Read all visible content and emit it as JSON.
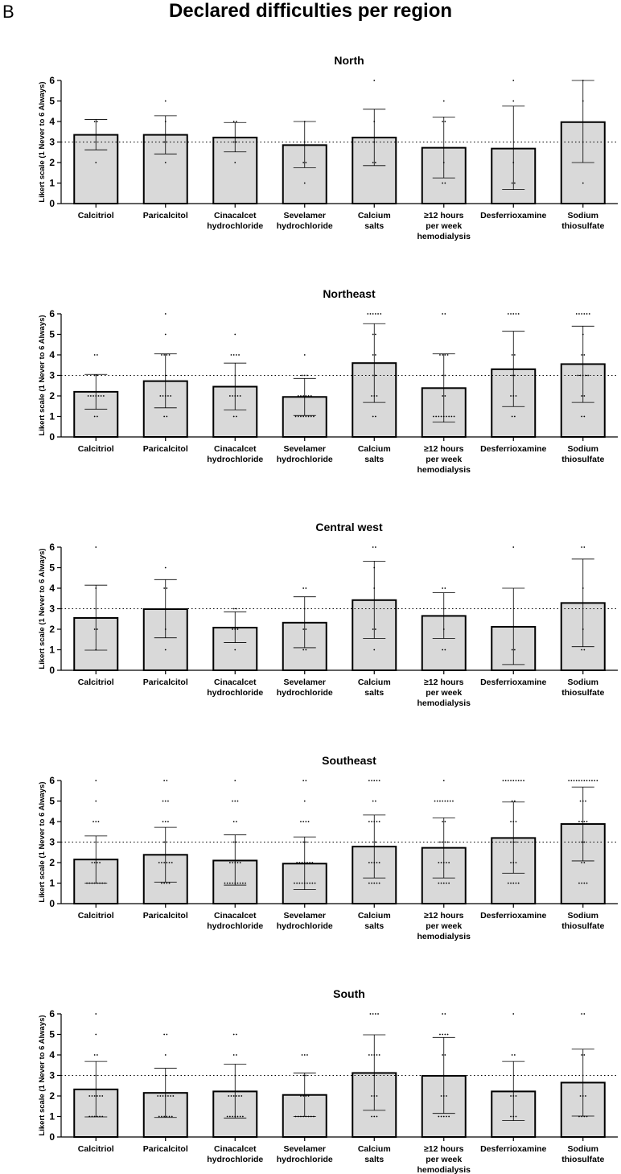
{
  "figure": {
    "panel_letter": "B",
    "title": "Declared difficulties per region"
  },
  "chart_data": [
    {
      "type": "bar",
      "title": "North",
      "ylabel": "Likert scale (1 Never to 6 Always)",
      "ylim": [
        0,
        6
      ],
      "yticks": [
        0,
        1,
        2,
        3,
        4,
        5,
        6
      ],
      "reference_line": 3,
      "categories": [
        [
          "Calcitriol"
        ],
        [
          "Paricalcitol"
        ],
        [
          "Cinacalcet",
          "hydrochloride"
        ],
        [
          "Sevelamer",
          "hydrochloride"
        ],
        [
          "Calcium",
          "salts"
        ],
        [
          "≥12 hours",
          "per week",
          "hemodialysis"
        ],
        [
          "Desferrioxamine"
        ],
        [
          "Sodium",
          "thiosulfate"
        ]
      ],
      "values": [
        3.35,
        3.35,
        3.22,
        2.85,
        3.22,
        2.72,
        2.68,
        3.97
      ],
      "error_low": [
        2.62,
        2.42,
        2.52,
        1.75,
        1.85,
        1.25,
        0.68,
        2.0
      ],
      "error_high": [
        4.1,
        4.28,
        3.95,
        4.0,
        4.6,
        4.22,
        4.75,
        6.0
      ],
      "points": [
        [
          4,
          4,
          3,
          2
        ],
        [
          5,
          4,
          3,
          3,
          2
        ],
        [
          4,
          4,
          3,
          3,
          2
        ],
        [
          4,
          3,
          2,
          2,
          1
        ],
        [
          6,
          4,
          3,
          2,
          2
        ],
        [
          5,
          4,
          4,
          2,
          1,
          1
        ],
        [
          6,
          5,
          2,
          1,
          1
        ],
        [
          6,
          5,
          3,
          1
        ]
      ]
    },
    {
      "type": "bar",
      "title": "Northeast",
      "ylabel": "Likert scale (1 Never to 6 Always)",
      "ylim": [
        0,
        6
      ],
      "yticks": [
        0,
        1,
        2,
        3,
        4,
        5,
        6
      ],
      "reference_line": 3,
      "categories": [
        [
          "Calcitriol"
        ],
        [
          "Paricalcitol"
        ],
        [
          "Cinacalcet",
          "hydrochloride"
        ],
        [
          "Sevelamer",
          "hydrochloride"
        ],
        [
          "Calcium",
          "salts"
        ],
        [
          "≥12 hours",
          "per week",
          "hemodialysis"
        ],
        [
          "Desferrioxamine"
        ],
        [
          "Sodium",
          "thiosulfate"
        ]
      ],
      "values": [
        2.2,
        2.72,
        2.45,
        1.95,
        3.6,
        2.38,
        3.3,
        3.55
      ],
      "error_low": [
        1.35,
        1.42,
        1.32,
        1.05,
        1.68,
        0.72,
        1.48,
        1.68
      ],
      "error_high": [
        3.05,
        4.05,
        3.6,
        2.85,
        5.52,
        4.05,
        5.15,
        5.4
      ],
      "points": [
        [
          4,
          4,
          3,
          3,
          2,
          2,
          2,
          2,
          2,
          2,
          2,
          1,
          1
        ],
        [
          6,
          5,
          4,
          4,
          4,
          4,
          3,
          2,
          2,
          2,
          2,
          2,
          1,
          1
        ],
        [
          5,
          4,
          4,
          4,
          4,
          3,
          2,
          2,
          2,
          2,
          2,
          1,
          1
        ],
        [
          4,
          3,
          3,
          3,
          2,
          2,
          2,
          2,
          2,
          2,
          1,
          1,
          1,
          1,
          1,
          1,
          1,
          1
        ],
        [
          6,
          6,
          6,
          6,
          6,
          6,
          5,
          5,
          4,
          4,
          3,
          3,
          2,
          2,
          2,
          1,
          1
        ],
        [
          6,
          6,
          4,
          4,
          4,
          4,
          3,
          3,
          2,
          2,
          1,
          1,
          1,
          1,
          1,
          1,
          1,
          1,
          1
        ],
        [
          6,
          6,
          6,
          6,
          6,
          4,
          4,
          3,
          3,
          2,
          2,
          2,
          1,
          1
        ],
        [
          6,
          6,
          6,
          6,
          6,
          6,
          5,
          4,
          4,
          3,
          3,
          3,
          3,
          3,
          2,
          2,
          1,
          1
        ]
      ]
    },
    {
      "type": "bar",
      "title": "Central west",
      "ylabel": "Likert scale (1 Never to 6 Always)",
      "ylim": [
        0,
        6
      ],
      "yticks": [
        0,
        1,
        2,
        3,
        4,
        5,
        6
      ],
      "reference_line": 3,
      "categories": [
        [
          "Calcitriol"
        ],
        [
          "Paricalcitol"
        ],
        [
          "Cinacalcet",
          "hydrochloride"
        ],
        [
          "Sevelamer",
          "hydrochloride"
        ],
        [
          "Calcium",
          "salts"
        ],
        [
          "≥12 hours",
          "per week",
          "hemodialysis"
        ],
        [
          "Desferrioxamine"
        ],
        [
          "Sodium",
          "thiosulfate"
        ]
      ],
      "values": [
        2.55,
        2.98,
        2.08,
        2.32,
        3.42,
        2.65,
        2.12,
        3.28
      ],
      "error_low": [
        0.98,
        1.58,
        1.35,
        1.1,
        1.55,
        1.55,
        0.28,
        1.15
      ],
      "error_high": [
        4.15,
        4.42,
        2.85,
        3.58,
        5.32,
        3.78,
        4.0,
        5.42
      ],
      "points": [
        [
          6,
          4,
          3,
          2,
          2,
          1
        ],
        [
          5,
          4,
          4,
          3,
          2,
          1
        ],
        [
          3,
          3,
          2,
          2,
          2,
          1
        ],
        [
          4,
          4,
          3,
          2,
          2,
          1,
          1
        ],
        [
          6,
          6,
          5,
          4,
          2,
          2,
          1
        ],
        [
          4,
          4,
          3,
          2,
          1,
          1
        ],
        [
          6,
          1,
          1
        ],
        [
          6,
          6,
          4,
          2,
          1,
          1
        ]
      ]
    },
    {
      "type": "bar",
      "title": "Southeast",
      "ylabel": "Likert scale (1 Never to 6 Always)",
      "ylim": [
        0,
        6
      ],
      "yticks": [
        0,
        1,
        2,
        3,
        4,
        5,
        6
      ],
      "reference_line": 3,
      "categories": [
        [
          "Calcitriol"
        ],
        [
          "Paricalcitol"
        ],
        [
          "Cinacalcet",
          "hydrochloride"
        ],
        [
          "Sevelamer",
          "hydrochloride"
        ],
        [
          "Calcium",
          "salts"
        ],
        [
          "≥12 hours",
          "per week",
          "hemodialysis"
        ],
        [
          "Desferrioxamine"
        ],
        [
          "Sodium",
          "thiosulfate"
        ]
      ],
      "values": [
        2.15,
        2.38,
        2.1,
        1.95,
        2.78,
        2.72,
        3.2,
        3.88
      ],
      "error_low": [
        1.0,
        1.05,
        0.9,
        0.68,
        1.25,
        1.25,
        1.48,
        2.08
      ],
      "error_high": [
        3.3,
        3.72,
        3.35,
        3.25,
        4.32,
        4.18,
        4.95,
        5.68
      ],
      "points": [
        [
          6,
          5,
          4,
          4,
          4,
          3,
          2,
          2,
          2,
          2,
          1,
          1,
          1,
          1,
          1,
          1,
          1,
          1
        ],
        [
          6,
          6,
          5,
          5,
          5,
          4,
          4,
          4,
          3,
          3,
          2,
          2,
          2,
          2,
          2,
          2,
          1,
          1,
          1,
          1
        ],
        [
          6,
          5,
          5,
          5,
          4,
          4,
          3,
          3,
          2,
          2,
          2,
          2,
          2,
          1,
          1,
          1,
          1,
          1,
          1,
          1,
          1,
          1
        ],
        [
          6,
          6,
          5,
          4,
          4,
          4,
          4,
          3,
          3,
          2,
          2,
          2,
          2,
          2,
          2,
          2,
          1,
          1,
          1,
          1,
          1,
          1,
          1,
          1,
          1
        ],
        [
          6,
          6,
          6,
          6,
          6,
          5,
          5,
          4,
          4,
          4,
          4,
          4,
          3,
          3,
          2,
          2,
          2,
          2,
          2,
          1,
          1,
          1,
          1,
          1
        ],
        [
          6,
          5,
          5,
          5,
          5,
          5,
          5,
          5,
          5,
          4,
          4,
          3,
          3,
          3,
          3,
          2,
          2,
          2,
          2,
          2,
          1,
          1,
          1,
          1,
          1
        ],
        [
          6,
          6,
          6,
          6,
          6,
          6,
          6,
          6,
          6,
          5,
          5,
          4,
          4,
          4,
          3,
          3,
          3,
          2,
          2,
          2,
          1,
          1,
          1,
          1,
          1
        ],
        [
          6,
          6,
          6,
          6,
          6,
          6,
          6,
          6,
          6,
          6,
          6,
          6,
          5,
          5,
          5,
          4,
          4,
          4,
          4,
          3,
          3,
          2,
          2,
          1,
          1,
          1,
          1
        ]
      ]
    },
    {
      "type": "bar",
      "title": "South",
      "ylabel": "Likert scale (1 Never to 6 Always)",
      "ylim": [
        0,
        6
      ],
      "yticks": [
        0,
        1,
        2,
        3,
        4,
        5,
        6
      ],
      "reference_line": 3,
      "categories": [
        [
          "Calcitriol"
        ],
        [
          "Paricalcitol"
        ],
        [
          "Cinacalcet",
          "hydrochloride"
        ],
        [
          "Sevelamer",
          "hydrochloride"
        ],
        [
          "Calcium",
          "salts"
        ],
        [
          "≥12 hours",
          "per week",
          "hemodialysis"
        ],
        [
          "Desferrioxamine"
        ],
        [
          "Sodium",
          "thiosulfate"
        ]
      ],
      "values": [
        2.32,
        2.15,
        2.22,
        2.05,
        3.12,
        2.98,
        2.22,
        2.65
      ],
      "error_low": [
        0.98,
        0.95,
        0.92,
        1.0,
        1.3,
        1.15,
        0.8,
        1.02
      ],
      "error_high": [
        3.68,
        3.35,
        3.55,
        3.12,
        4.98,
        4.85,
        3.68,
        4.28
      ],
      "points": [
        [
          6,
          5,
          4,
          4,
          3,
          2,
          2,
          2,
          2,
          2,
          2,
          1,
          1,
          1,
          1,
          1,
          1
        ],
        [
          5,
          5,
          4,
          3,
          2,
          2,
          2,
          2,
          2,
          2,
          2,
          1,
          1,
          1,
          1,
          1,
          1
        ],
        [
          5,
          5,
          4,
          4,
          3,
          2,
          2,
          2,
          2,
          2,
          2,
          1,
          1,
          1,
          1,
          1,
          1,
          1
        ],
        [
          4,
          4,
          4,
          3,
          3,
          2,
          2,
          2,
          2,
          1,
          1,
          1,
          1,
          1,
          1,
          1,
          1
        ],
        [
          6,
          6,
          6,
          6,
          4,
          4,
          4,
          4,
          4,
          3,
          2,
          2,
          2,
          1,
          1,
          1
        ],
        [
          6,
          6,
          5,
          5,
          5,
          5,
          4,
          4,
          3,
          2,
          2,
          2,
          1,
          1,
          1,
          1,
          1
        ],
        [
          6,
          4,
          4,
          2,
          2,
          2,
          1,
          1,
          1
        ],
        [
          6,
          6,
          4,
          4,
          3,
          2,
          2,
          2,
          1,
          1,
          1,
          1
        ]
      ]
    }
  ]
}
